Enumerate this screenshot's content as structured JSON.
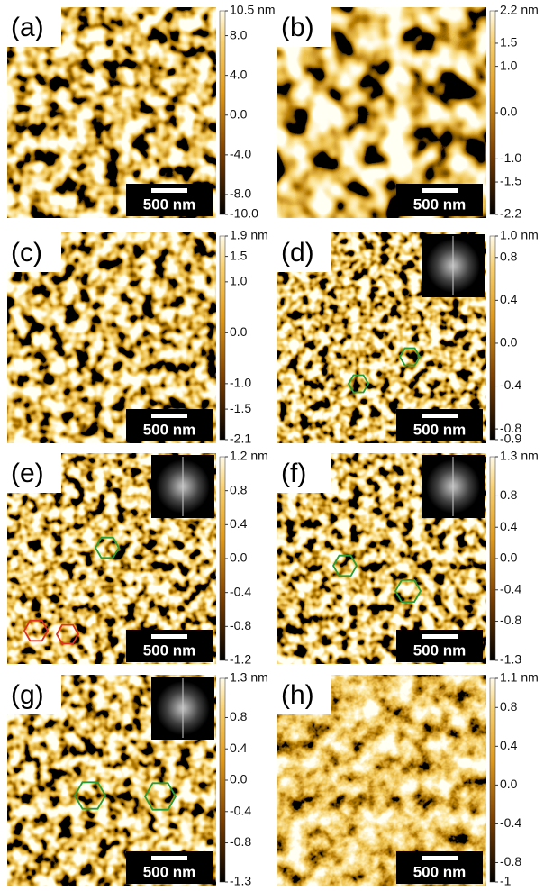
{
  "panels": [
    {
      "label": "(a)",
      "scale_bar": "500 nm",
      "fft_inset": false,
      "colorbar": {
        "ticks": [
          {
            "value": 10.5,
            "label": "10.5 nm"
          },
          {
            "value": 8,
            "label": "8.0"
          },
          {
            "value": 4,
            "label": "4.0"
          },
          {
            "value": 0,
            "label": "0.0"
          },
          {
            "value": -4,
            "label": "-4.0"
          },
          {
            "value": -8,
            "label": "-8.0"
          },
          {
            "value": -10,
            "label": "-10.0"
          }
        ]
      }
    },
    {
      "label": "(b)",
      "scale_bar": "500 nm",
      "fft_inset": false,
      "colorbar": {
        "ticks": [
          {
            "value": 2.2,
            "label": "2.2 nm"
          },
          1.5,
          {
            "value": 1,
            "label": "1.0"
          },
          {
            "value": 0,
            "label": "0.0"
          },
          {
            "value": -1,
            "label": "-1.0"
          },
          -1.5,
          -2.2
        ]
      }
    },
    {
      "label": "(c)",
      "scale_bar": "500 nm",
      "fft_inset": false,
      "colorbar": {
        "ticks": [
          {
            "value": 1.9,
            "label": "1.9 nm"
          },
          1.5,
          {
            "value": 1,
            "label": "1.0"
          },
          {
            "value": 0,
            "label": "0.0"
          },
          {
            "value": -1,
            "label": "-1.0"
          },
          -1.5,
          -2.1
        ]
      }
    },
    {
      "label": "(d)",
      "scale_bar": "500 nm",
      "fft_inset": true,
      "colorbar": {
        "ticks": [
          {
            "value": 1,
            "label": "1.0 nm"
          },
          0.8,
          0.4,
          {
            "value": 0,
            "label": "0.0"
          },
          -0.4,
          -0.8,
          -0.9
        ]
      }
    },
    {
      "label": "(e)",
      "scale_bar": "500 nm",
      "fft_inset": true,
      "colorbar": {
        "ticks": [
          {
            "value": 1.2,
            "label": "1.2 nm"
          },
          0.8,
          0.4,
          {
            "value": 0,
            "label": "0.0"
          },
          -0.4,
          -0.8,
          -1.2
        ]
      }
    },
    {
      "label": "(f)",
      "scale_bar": "500 nm",
      "fft_inset": true,
      "colorbar": {
        "ticks": [
          {
            "value": 1.3,
            "label": "1.3 nm"
          },
          0.8,
          0.4,
          {
            "value": 0,
            "label": "0.0"
          },
          -0.4,
          -0.8,
          -1.3
        ]
      }
    },
    {
      "label": "(g)",
      "scale_bar": "500 nm",
      "fft_inset": true,
      "colorbar": {
        "ticks": [
          {
            "value": 1.3,
            "label": "1.3 nm"
          },
          0.8,
          0.4,
          {
            "value": 0,
            "label": "0.0"
          },
          -0.4,
          -0.8,
          -1.3
        ]
      }
    },
    {
      "label": "(h)",
      "scale_bar": "500 nm",
      "fft_inset": false,
      "colorbar": {
        "ticks": [
          {
            "value": 1.1,
            "label": "1.1 nm"
          },
          0.8,
          0.4,
          {
            "value": 0,
            "label": "0.0"
          },
          -0.4,
          -0.8,
          -1.0
        ]
      }
    }
  ]
}
